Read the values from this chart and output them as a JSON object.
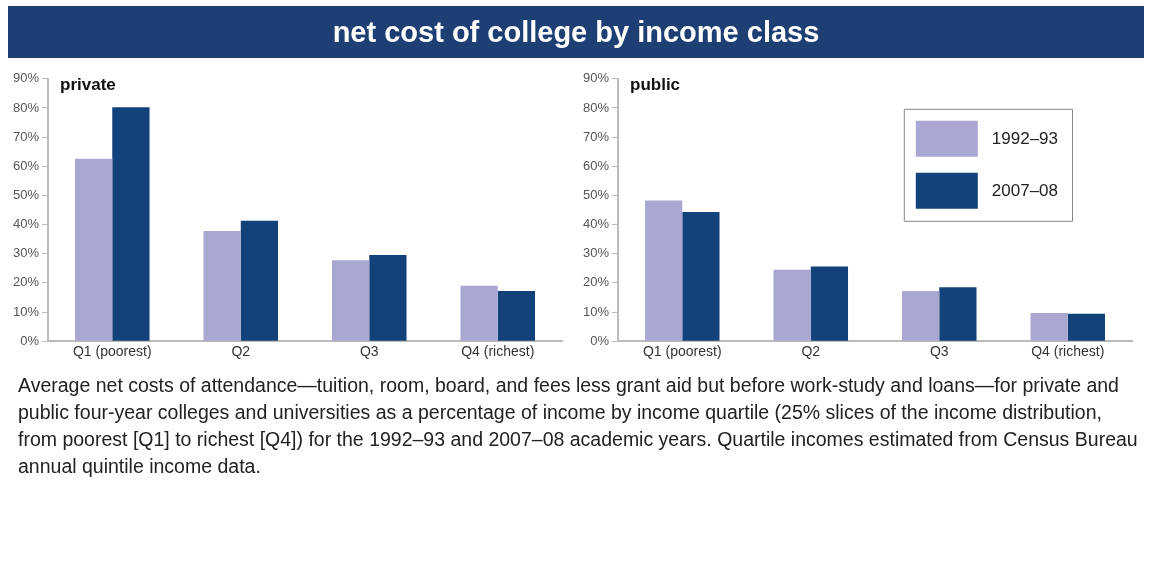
{
  "chart_data": [
    {
      "type": "other",
      "title": "net cost of college by income class",
      "annotations": [
        "Average net costs of attendance—tuition, room, board, and fees less grant aid but before work-study and loans—for private and public four-year colleges and universities as a percentage of income by income quartile (25% slices of the income distribution, from poorest [Q1] to richest [Q4]) for the 1992–93 and 2007–08 academic years. Quartile incomes estimated from Census Bureau annual quintile income data."
      ]
    },
    {
      "type": "bar",
      "title": "private",
      "categories": [
        "Q1 (poorest)",
        "Q2",
        "Q3",
        "Q4 (richest)"
      ],
      "series": [
        {
          "color": "#aaa8d2",
          "values": [
            62.6,
            37.8,
            27.8,
            19.0
          ]
        },
        {
          "color": "#13427a",
          "values": [
            80.2,
            41.3,
            29.6,
            17.2
          ]
        }
      ],
      "ylim": [
        0,
        90
      ],
      "yticks": [
        {
          "value": 0,
          "label": "0%"
        },
        {
          "value": 10,
          "label": "10%"
        },
        {
          "value": 20,
          "label": "20%"
        },
        {
          "value": 30,
          "label": "30%"
        },
        {
          "value": 40,
          "label": "40%"
        },
        {
          "value": 50,
          "label": "50%"
        },
        {
          "value": 60,
          "label": "60%"
        },
        {
          "value": 70,
          "label": "70%"
        },
        {
          "value": 80,
          "label": "80%"
        },
        {
          "value": 90,
          "label": "90%"
        }
      ],
      "grid": false,
      "legend": false
    },
    {
      "type": "bar",
      "title": "public",
      "categories": [
        "Q1 (poorest)",
        "Q2",
        "Q3",
        "Q4 (richest)"
      ],
      "series": [
        {
          "name": "1992–93",
          "color": "#aaa8d2",
          "values": [
            48.3,
            24.5,
            17.2,
            9.7
          ]
        },
        {
          "name": "2007–08",
          "color": "#13427a",
          "values": [
            44.3,
            25.6,
            18.5,
            9.4
          ]
        }
      ],
      "ylim": [
        0,
        90
      ],
      "yticks": [
        {
          "value": 0,
          "label": "0%"
        },
        {
          "value": 10,
          "label": "10%"
        },
        {
          "value": 20,
          "label": "20%"
        },
        {
          "value": 30,
          "label": "30%"
        },
        {
          "value": 40,
          "label": "40%"
        },
        {
          "value": 50,
          "label": "50%"
        },
        {
          "value": 60,
          "label": "60%"
        },
        {
          "value": 70,
          "label": "70%"
        },
        {
          "value": 80,
          "label": "80%"
        },
        {
          "value": 90,
          "label": "90%"
        }
      ],
      "grid": false,
      "legend": "top right"
    }
  ]
}
